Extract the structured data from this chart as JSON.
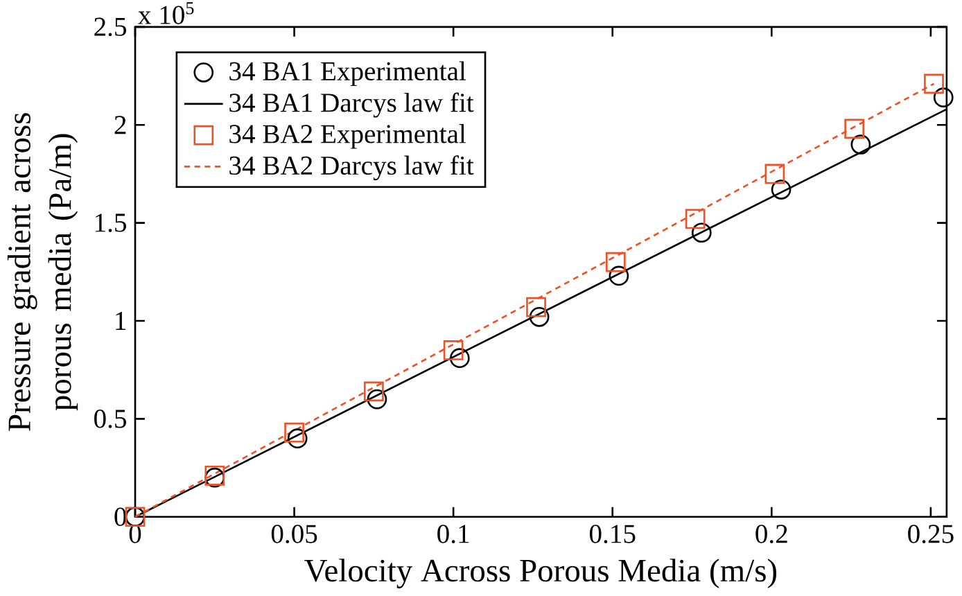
{
  "chart_data": {
    "type": "line",
    "xlabel": "Velocity Across Porous Media (m/s)",
    "ylabel": "Pressure gradient across porous media (Pa/m)",
    "annotations": [
      "x 10$^{5}$"
    ],
    "xlim": [
      0,
      0.255
    ],
    "ylim": [
      0,
      2.5
    ],
    "xticks": [
      0,
      0.05,
      0.1,
      0.15,
      0.2,
      0.25
    ],
    "yticks": [
      0,
      0.5,
      1,
      1.5,
      2,
      2.5
    ],
    "legend": "top left",
    "grid": false,
    "series": [
      {
        "name": "34 BA1 Experimental",
        "type": "scatter",
        "marker": "circle",
        "color": "#000000",
        "x": [
          0,
          0.025,
          0.051,
          0.076,
          0.102,
          0.127,
          0.152,
          0.178,
          0.203,
          0.228,
          0.254
        ],
        "values": [
          0,
          0.2,
          0.4,
          0.6,
          0.81,
          1.02,
          1.23,
          1.45,
          1.67,
          1.9,
          2.14
        ]
      },
      {
        "name": "34 BA1 Darcys law fit",
        "line_style": "solid",
        "color": "#000000",
        "x": [
          0,
          0.255
        ],
        "values": [
          0,
          2.08
        ]
      },
      {
        "name": "34 BA2 Experimental",
        "type": "scatter",
        "marker": "square",
        "color": "#f05023",
        "x": [
          0,
          0.025,
          0.05,
          0.075,
          0.1,
          0.126,
          0.151,
          0.176,
          0.201,
          0.226,
          0.251
        ],
        "values": [
          0,
          0.21,
          0.43,
          0.64,
          0.85,
          1.07,
          1.3,
          1.52,
          1.75,
          1.98,
          2.21
        ]
      },
      {
        "name": "34 BA2 Darcys law fit",
        "line_style": "dotted",
        "color": "#f05023",
        "x": [
          0,
          0.251
        ],
        "values": [
          0,
          2.21
        ]
      }
    ]
  }
}
